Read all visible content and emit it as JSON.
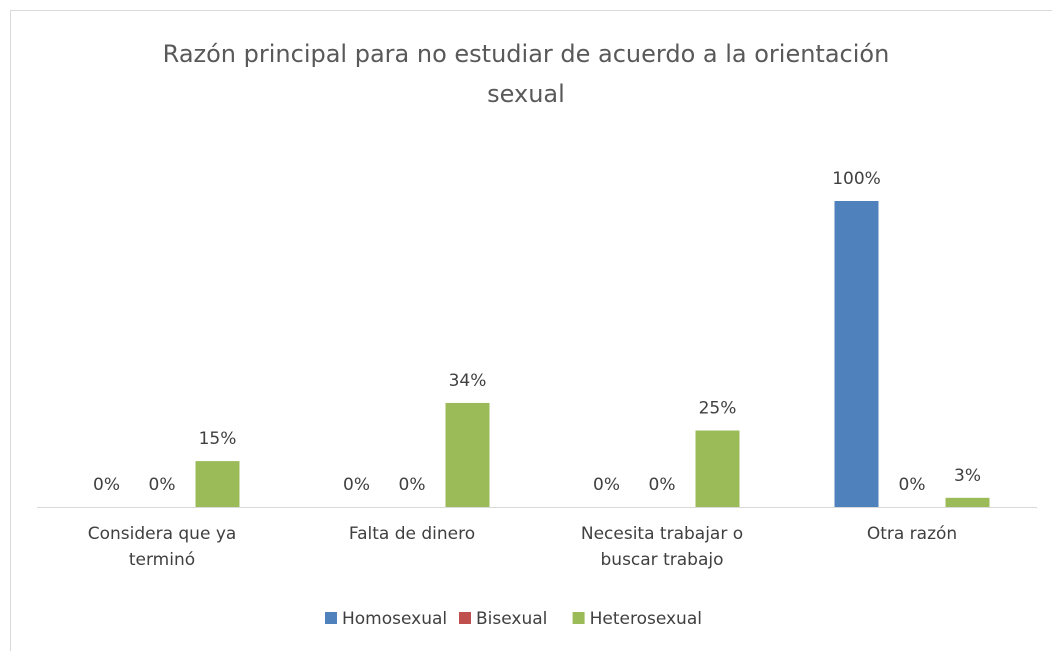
{
  "chart_data": {
    "type": "bar",
    "title": "Razón principal para no estudiar de acuerdo a la orientación sexual",
    "categories": [
      "Considera que ya terminó",
      "Falta de dinero",
      "Necesita trabajar  o buscar trabajo",
      "Otra razón"
    ],
    "series": [
      {
        "name": "Homosexual",
        "color": "#4f81bd",
        "values": [
          0,
          0,
          0,
          100
        ],
        "value_labels": [
          "0%",
          "0%",
          "0%",
          "100%"
        ]
      },
      {
        "name": "Bisexual",
        "color": "#c0504d",
        "values": [
          0,
          0,
          0,
          0
        ],
        "value_labels": [
          "0%",
          "0%",
          "0%",
          "0%"
        ]
      },
      {
        "name": "Heterosexual",
        "color": "#9bbb59",
        "values": [
          15,
          34,
          25,
          3
        ],
        "value_labels": [
          "15%",
          "34%",
          "25%",
          "3%"
        ]
      }
    ],
    "ylim": [
      0,
      100
    ],
    "legend": "bottom"
  }
}
